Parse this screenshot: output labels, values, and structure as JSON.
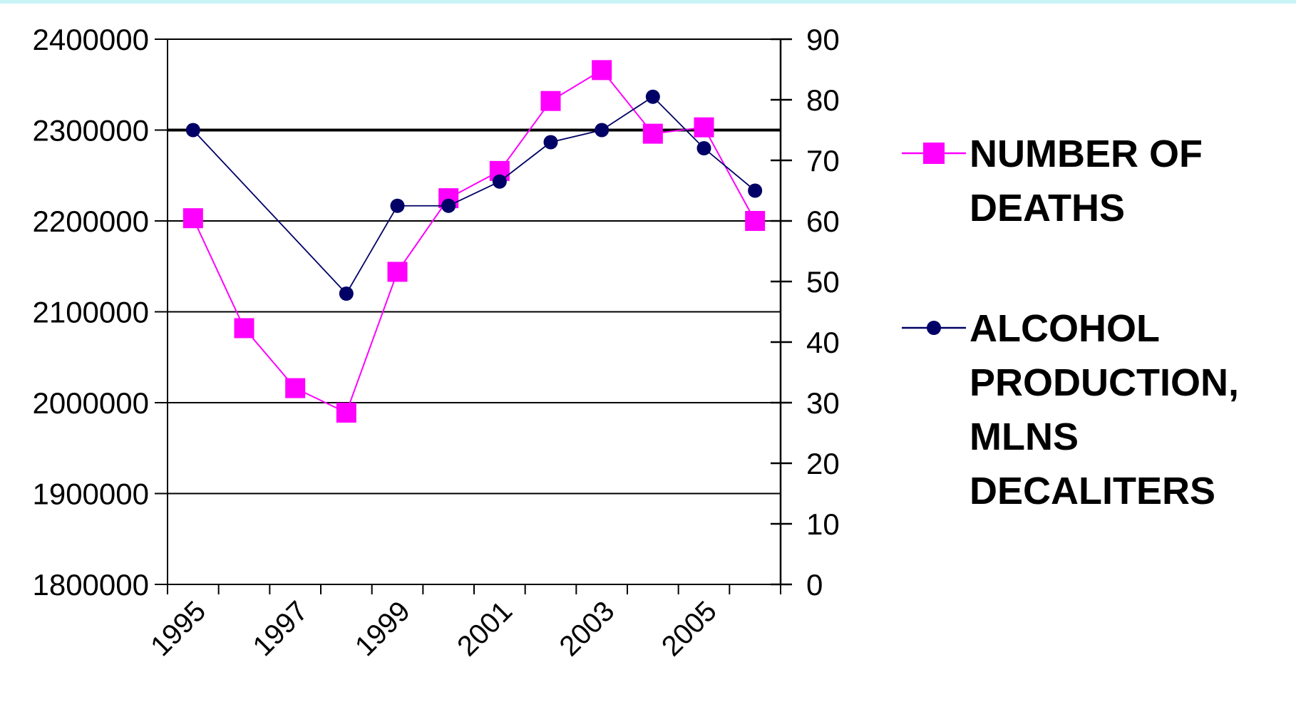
{
  "colors": {
    "deaths": "#ff00ff",
    "alcohol": "#000066",
    "grid": "#000000",
    "background": "#ffffff",
    "top_strip": "#c8f4f6"
  },
  "chart_data": {
    "type": "line",
    "title": "",
    "xlabel": "",
    "ylabel_left": "",
    "ylabel_right": "",
    "x_categories": [
      "1995",
      "1996",
      "1997",
      "1998",
      "1999",
      "2000",
      "2001",
      "2002",
      "2003",
      "2004",
      "2005",
      "2006"
    ],
    "x_tick_labels": [
      "1995",
      "1997",
      "1999",
      "2001",
      "2003",
      "2005"
    ],
    "y_left": {
      "min": 1800000,
      "max": 2400000,
      "ticks": [
        "2400000",
        "2300000",
        "2200000",
        "2100000",
        "2000000",
        "1900000",
        "1800000"
      ]
    },
    "y_right": {
      "min": 0,
      "max": 90,
      "ticks": [
        "90",
        "80",
        "70",
        "60",
        "50",
        "40",
        "30",
        "20",
        "10",
        "0"
      ]
    },
    "grid": true,
    "legend_placement": "right",
    "series": [
      {
        "name": "NUMBER OF DEATHS",
        "axis": "left",
        "marker": "square",
        "points": [
          {
            "x": "1995",
            "y": 2203000
          },
          {
            "x": "1996",
            "y": 2082000
          },
          {
            "x": "1997",
            "y": 2016000
          },
          {
            "x": "1998",
            "y": 1989000
          },
          {
            "x": "1999",
            "y": 2144000
          },
          {
            "x": "2000",
            "y": 2225000
          },
          {
            "x": "2001",
            "y": 2255000
          },
          {
            "x": "2002",
            "y": 2332000
          },
          {
            "x": "2003",
            "y": 2366000
          },
          {
            "x": "2004",
            "y": 2296000
          },
          {
            "x": "2005",
            "y": 2303000
          },
          {
            "x": "2006",
            "y": 2200000
          }
        ]
      },
      {
        "name": "ALCOHOL PRODUCTION, MLNS DECALITERS",
        "axis": "right",
        "marker": "circle",
        "points": [
          {
            "x": "1995",
            "y": 75
          },
          {
            "x": "1998",
            "y": 48
          },
          {
            "x": "1999",
            "y": 62.5
          },
          {
            "x": "2000",
            "y": 62.5
          },
          {
            "x": "2001",
            "y": 66.5
          },
          {
            "x": "2002",
            "y": 73
          },
          {
            "x": "2003",
            "y": 75
          },
          {
            "x": "2004",
            "y": 80.5
          },
          {
            "x": "2005",
            "y": 72
          },
          {
            "x": "2006",
            "y": 65
          }
        ]
      }
    ],
    "legend": [
      {
        "series": 0,
        "lines": [
          "NUMBER OF",
          "DEATHS"
        ]
      },
      {
        "series": 1,
        "lines": [
          "ALCOHOL",
          "PRODUCTION,",
          "MLNS",
          "DECALITERS"
        ]
      }
    ]
  }
}
